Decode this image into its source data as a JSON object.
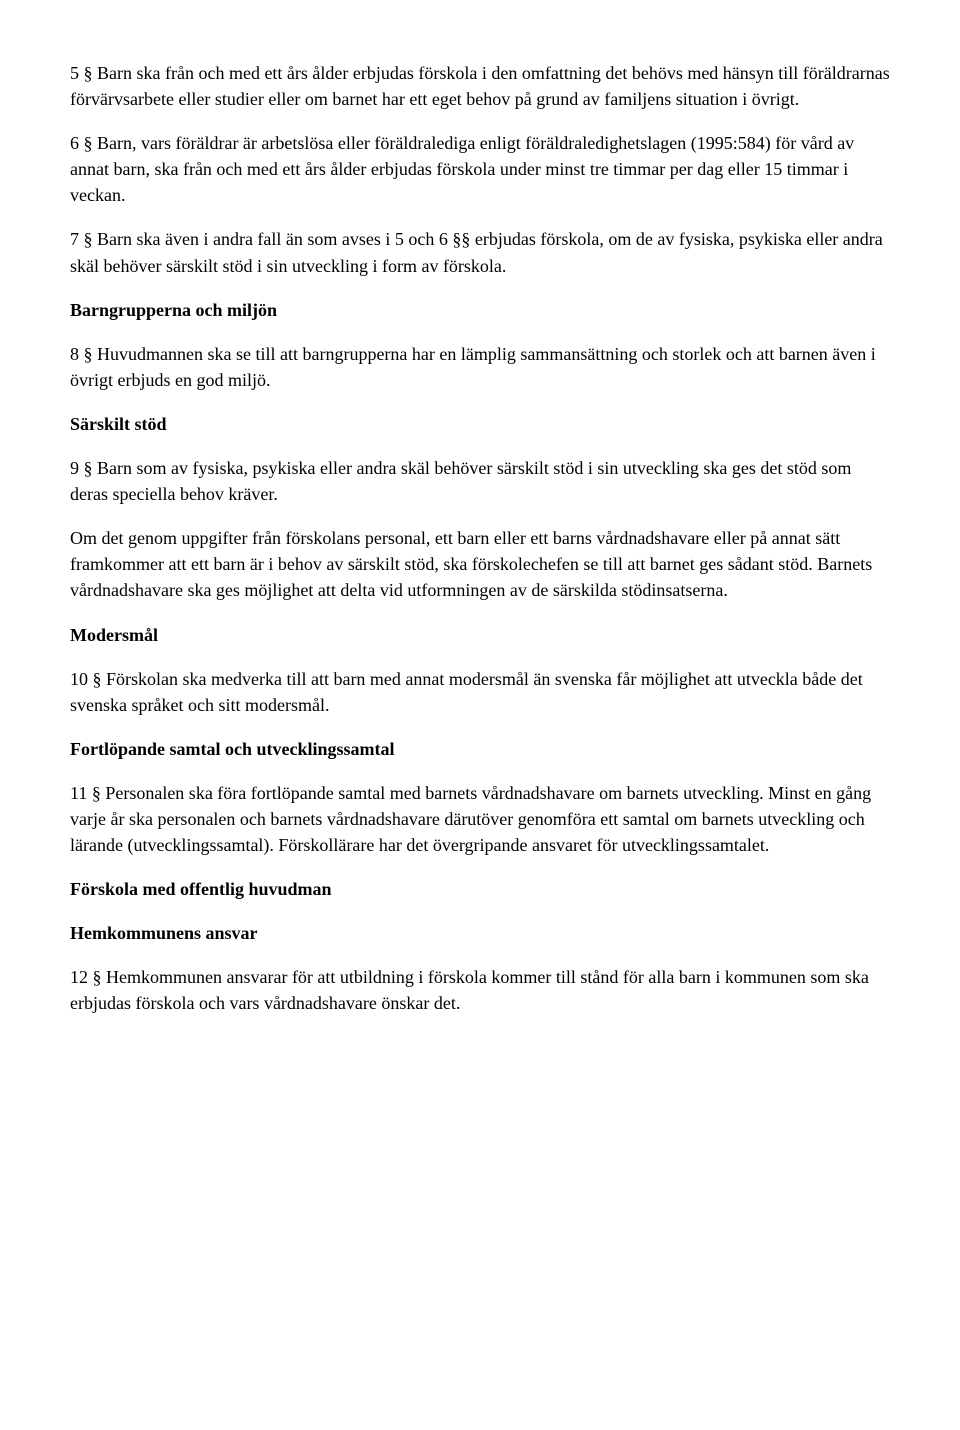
{
  "paragraphs": {
    "p5": "5 § Barn ska från och med ett års ålder erbjudas förskola i den omfattning det behövs med hänsyn till föräldrarnas förvärvsarbete eller studier eller om barnet har ett eget behov på grund av familjens situation i övrigt.",
    "p6": "6 § Barn, vars föräldrar är arbetslösa eller föräldralediga enligt föräldraledighetslagen (1995:584) för vård av annat barn, ska från och med ett års ålder erbjudas förskola under minst tre timmar per dag eller 15 timmar i veckan.",
    "p7": "7 § Barn ska även i andra fall än som avses i 5 och 6 §§ erbjudas förskola, om de av fysiska, psykiska eller andra skäl behöver särskilt stöd i sin utveckling i form av förskola.",
    "h_barngrupper": "Barngrupperna och miljön",
    "p8": "8 § Huvudmannen ska se till att barngrupperna har en lämplig sammansättning och storlek och att barnen även i övrigt erbjuds en god miljö.",
    "h_sarskilt": "Särskilt stöd",
    "p9": "9 § Barn som av fysiska, psykiska eller andra skäl behöver särskilt stöd i sin utveckling ska ges det stöd som deras speciella behov kräver.",
    "p9b": "Om det genom uppgifter från förskolans personal, ett barn eller ett barns vårdnadshavare eller på annat sätt framkommer att ett barn är i behov av särskilt stöd, ska förskolechefen se till att barnet ges sådant stöd. Barnets vårdnadshavare ska ges möjlighet att delta vid utformningen av de särskilda stödinsatserna.",
    "h_modersmal": "Modersmål",
    "p10": "10 § Förskolan ska medverka till att barn med annat modersmål än svenska får möjlighet att utveckla både det svenska språket och sitt modersmål.",
    "h_fortlopande": "Fortlöpande samtal och utvecklingssamtal",
    "p11": "11 § Personalen ska föra fortlöpande samtal med barnets vårdnadshavare om barnets utveckling. Minst en gång varje år ska personalen och barnets vårdnadshavare därutöver genomföra ett samtal om barnets utveckling och lärande (utvecklingssamtal). Förskollärare har det övergripande ansvaret för utvecklingssamtalet.",
    "h_offentlig": "Förskola med offentlig huvudman",
    "h_hemkommun": "Hemkommunens ansvar",
    "p12": "12 § Hemkommunen ansvarar för att utbildning i förskola kommer till stånd för alla barn i kommunen som ska erbjudas förskola och vars vårdnadshavare önskar det."
  }
}
